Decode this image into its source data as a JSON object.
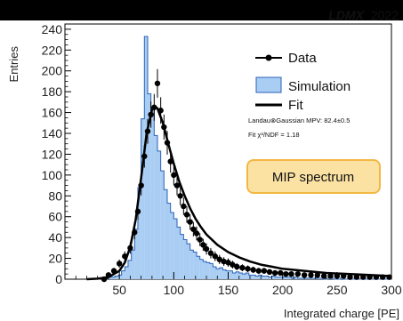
{
  "chart_data": {
    "type": "histogram",
    "experiment": "LDMX",
    "year": "2022",
    "xlabel": "Integrated charge [PE]",
    "ylabel": "Entries",
    "xlim": [
      0,
      300
    ],
    "ylim": [
      0,
      245
    ],
    "xticks": [
      50,
      100,
      150,
      200,
      250,
      300
    ],
    "yticks": [
      0,
      20,
      40,
      60,
      80,
      100,
      120,
      140,
      160,
      180,
      200,
      220,
      240
    ],
    "legend": [
      "Data",
      "Simulation",
      "Fit"
    ],
    "fit_mpv_label": "Landau⊗Gaussian MPV: 82.4±0.5",
    "fit_chi2_label": "Fit χ²/NDF = 1.18",
    "badge": "MIP spectrum",
    "colors": {
      "simulation_fill": "#a9cdf3",
      "simulation_line": "#2b63b8",
      "badge_fill": "#fbe2a3",
      "badge_border": "#f2b843",
      "data": "#000000",
      "fit": "#000000"
    },
    "simulation": {
      "bin_width": 3,
      "x_start": 40,
      "values": [
        2,
        2,
        3,
        4,
        8,
        12,
        18,
        28,
        48,
        88,
        154,
        233,
        178,
        165,
        138,
        123,
        104,
        86,
        73,
        64,
        58,
        50,
        43,
        38,
        34,
        28,
        26,
        22,
        19,
        17,
        16,
        15,
        12,
        10,
        11,
        9,
        8,
        8,
        6,
        7,
        6,
        5,
        6,
        4,
        4,
        3,
        4,
        3,
        3,
        2,
        3,
        2,
        2,
        2,
        2,
        2,
        1,
        2,
        1,
        1,
        1,
        1,
        1,
        1,
        1,
        1,
        0,
        1,
        1,
        0,
        0,
        1,
        0,
        0,
        0,
        0,
        0,
        0,
        0,
        0,
        0,
        0,
        0,
        0,
        0,
        0,
        0
      ]
    },
    "data": {
      "x": [
        36,
        40,
        45,
        50,
        55,
        60,
        64,
        67,
        70,
        73,
        76,
        79,
        82,
        85,
        88,
        91,
        94,
        97,
        100,
        103,
        106,
        109,
        112,
        115,
        118,
        121,
        124,
        127,
        130,
        134,
        138,
        142,
        146,
        150,
        154,
        158,
        163,
        168,
        173,
        178,
        183,
        188,
        193,
        198,
        203,
        208,
        214,
        220,
        226,
        232,
        238,
        244,
        250,
        256,
        262,
        268,
        274,
        280,
        286,
        292,
        298
      ],
      "y": [
        0,
        4,
        8,
        15,
        22,
        30,
        45,
        65,
        90,
        118,
        142,
        158,
        165,
        188,
        162,
        146,
        131,
        113,
        100,
        90,
        80,
        70,
        62,
        55,
        48,
        44,
        38,
        33,
        29,
        25,
        22,
        19,
        17,
        16,
        14,
        12,
        11,
        10,
        9,
        8,
        8,
        7,
        6,
        6,
        5,
        5,
        5,
        4,
        4,
        4,
        3,
        3,
        3,
        3,
        2,
        2,
        2,
        2,
        2,
        2,
        2
      ]
    },
    "fit": {
      "x": [
        20,
        30,
        40,
        50,
        55,
        60,
        65,
        70,
        75,
        80,
        82.4,
        85,
        90,
        95,
        100,
        105,
        110,
        115,
        120,
        125,
        130,
        140,
        150,
        160,
        170,
        180,
        190,
        200,
        220,
        240,
        260,
        280,
        300
      ],
      "y": [
        0,
        0.5,
        2,
        8,
        16,
        31,
        57,
        97,
        140,
        163,
        166,
        164,
        150,
        130,
        111,
        94,
        80,
        68,
        58,
        50,
        43,
        33,
        26,
        21,
        17,
        14,
        12,
        10,
        8,
        6,
        5,
        4,
        3
      ]
    }
  }
}
